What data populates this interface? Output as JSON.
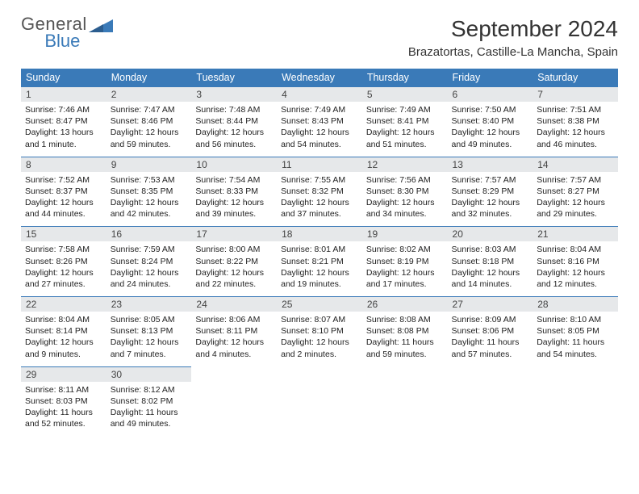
{
  "brand": {
    "general": "General",
    "blue": "Blue"
  },
  "title": "September 2024",
  "location": "Brazatortas, Castille-La Mancha, Spain",
  "colors": {
    "header_bg": "#3a7ab8",
    "header_fg": "#ffffff",
    "daynum_bg": "#e6e8ea",
    "row_border": "#3a7ab8",
    "text": "#222222"
  },
  "day_names": [
    "Sunday",
    "Monday",
    "Tuesday",
    "Wednesday",
    "Thursday",
    "Friday",
    "Saturday"
  ],
  "weeks": [
    [
      {
        "n": "1",
        "sr": "7:46 AM",
        "ss": "8:47 PM",
        "dl": "13 hours and 1 minute."
      },
      {
        "n": "2",
        "sr": "7:47 AM",
        "ss": "8:46 PM",
        "dl": "12 hours and 59 minutes."
      },
      {
        "n": "3",
        "sr": "7:48 AM",
        "ss": "8:44 PM",
        "dl": "12 hours and 56 minutes."
      },
      {
        "n": "4",
        "sr": "7:49 AM",
        "ss": "8:43 PM",
        "dl": "12 hours and 54 minutes."
      },
      {
        "n": "5",
        "sr": "7:49 AM",
        "ss": "8:41 PM",
        "dl": "12 hours and 51 minutes."
      },
      {
        "n": "6",
        "sr": "7:50 AM",
        "ss": "8:40 PM",
        "dl": "12 hours and 49 minutes."
      },
      {
        "n": "7",
        "sr": "7:51 AM",
        "ss": "8:38 PM",
        "dl": "12 hours and 46 minutes."
      }
    ],
    [
      {
        "n": "8",
        "sr": "7:52 AM",
        "ss": "8:37 PM",
        "dl": "12 hours and 44 minutes."
      },
      {
        "n": "9",
        "sr": "7:53 AM",
        "ss": "8:35 PM",
        "dl": "12 hours and 42 minutes."
      },
      {
        "n": "10",
        "sr": "7:54 AM",
        "ss": "8:33 PM",
        "dl": "12 hours and 39 minutes."
      },
      {
        "n": "11",
        "sr": "7:55 AM",
        "ss": "8:32 PM",
        "dl": "12 hours and 37 minutes."
      },
      {
        "n": "12",
        "sr": "7:56 AM",
        "ss": "8:30 PM",
        "dl": "12 hours and 34 minutes."
      },
      {
        "n": "13",
        "sr": "7:57 AM",
        "ss": "8:29 PM",
        "dl": "12 hours and 32 minutes."
      },
      {
        "n": "14",
        "sr": "7:57 AM",
        "ss": "8:27 PM",
        "dl": "12 hours and 29 minutes."
      }
    ],
    [
      {
        "n": "15",
        "sr": "7:58 AM",
        "ss": "8:26 PM",
        "dl": "12 hours and 27 minutes."
      },
      {
        "n": "16",
        "sr": "7:59 AM",
        "ss": "8:24 PM",
        "dl": "12 hours and 24 minutes."
      },
      {
        "n": "17",
        "sr": "8:00 AM",
        "ss": "8:22 PM",
        "dl": "12 hours and 22 minutes."
      },
      {
        "n": "18",
        "sr": "8:01 AM",
        "ss": "8:21 PM",
        "dl": "12 hours and 19 minutes."
      },
      {
        "n": "19",
        "sr": "8:02 AM",
        "ss": "8:19 PM",
        "dl": "12 hours and 17 minutes."
      },
      {
        "n": "20",
        "sr": "8:03 AM",
        "ss": "8:18 PM",
        "dl": "12 hours and 14 minutes."
      },
      {
        "n": "21",
        "sr": "8:04 AM",
        "ss": "8:16 PM",
        "dl": "12 hours and 12 minutes."
      }
    ],
    [
      {
        "n": "22",
        "sr": "8:04 AM",
        "ss": "8:14 PM",
        "dl": "12 hours and 9 minutes."
      },
      {
        "n": "23",
        "sr": "8:05 AM",
        "ss": "8:13 PM",
        "dl": "12 hours and 7 minutes."
      },
      {
        "n": "24",
        "sr": "8:06 AM",
        "ss": "8:11 PM",
        "dl": "12 hours and 4 minutes."
      },
      {
        "n": "25",
        "sr": "8:07 AM",
        "ss": "8:10 PM",
        "dl": "12 hours and 2 minutes."
      },
      {
        "n": "26",
        "sr": "8:08 AM",
        "ss": "8:08 PM",
        "dl": "11 hours and 59 minutes."
      },
      {
        "n": "27",
        "sr": "8:09 AM",
        "ss": "8:06 PM",
        "dl": "11 hours and 57 minutes."
      },
      {
        "n": "28",
        "sr": "8:10 AM",
        "ss": "8:05 PM",
        "dl": "11 hours and 54 minutes."
      }
    ],
    [
      {
        "n": "29",
        "sr": "8:11 AM",
        "ss": "8:03 PM",
        "dl": "11 hours and 52 minutes."
      },
      {
        "n": "30",
        "sr": "8:12 AM",
        "ss": "8:02 PM",
        "dl": "11 hours and 49 minutes."
      },
      null,
      null,
      null,
      null,
      null
    ]
  ],
  "labels": {
    "sunrise": "Sunrise:",
    "sunset": "Sunset:",
    "daylight": "Daylight:"
  }
}
